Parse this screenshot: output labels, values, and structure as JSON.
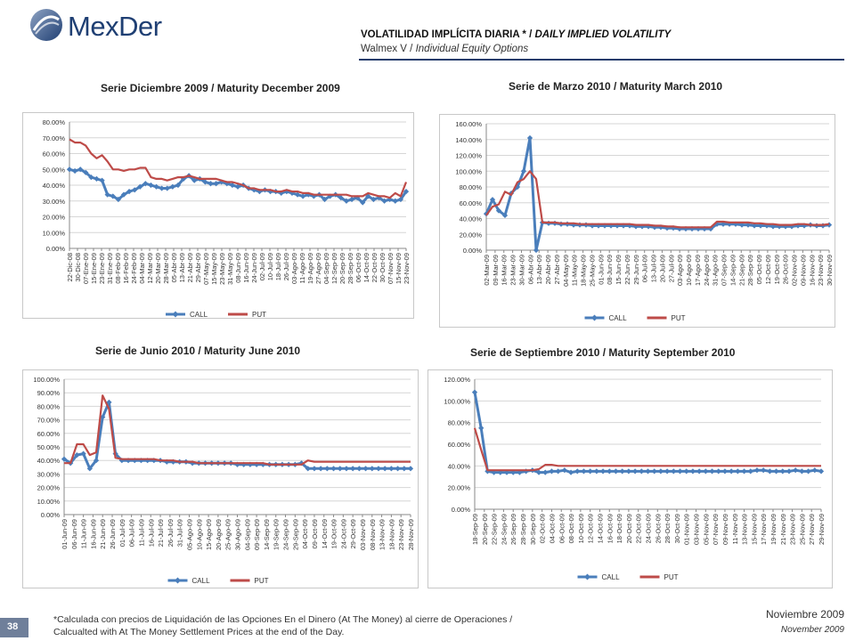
{
  "header": {
    "logo_text": "MexDer",
    "title_es": "VOLATILIDAD IMPLÍCITA DIARIA *",
    "title_sep": " / ",
    "title_en": "DAILY IMPLIED VOLATILITY",
    "subtitle_es": "Walmex V",
    "subtitle_sep": " / ",
    "subtitle_en": "Individual Equity Options"
  },
  "footer": {
    "note_line1": "*Calculada con precios de Liquidación de las Opciones En el Dinero (At The Money) al cierre de Operaciones /",
    "note_line2": "Calcualted with At The Money Settlement Prices at the end of the Day.",
    "date_es": "Noviembre 2009",
    "date_en": "November  2009",
    "page_number": "38"
  },
  "colors": {
    "call": "#4a7ebb",
    "put": "#be4b48",
    "brand": "#1f3f73"
  },
  "chart_data": [
    {
      "type": "line",
      "title": "Serie Diciembre 2009 / Maturity December 2009",
      "ylim": [
        0,
        80
      ],
      "ystep": 10,
      "y_format": "percent",
      "x_ticks": [
        "22-Dic-08",
        "30-Dic-08",
        "07-Ene-09",
        "15-Ene-09",
        "23-Ene-09",
        "31-Ene-09",
        "08-Feb-09",
        "16-Feb-09",
        "24-Feb-09",
        "04-Mar-09",
        "12-Mar-09",
        "20-Mar-09",
        "28-Mar-09",
        "05-Abr-09",
        "13-Abr-09",
        "21-Abr-09",
        "29-Abr-09",
        "07-May-09",
        "15-May-09",
        "23-May-09",
        "31-May-09",
        "08-Jun-09",
        "16-Jun-09",
        "24-Jun-09",
        "02-Jul-09",
        "10-Jul-09",
        "18-Jul-09",
        "26-Jul-09",
        "03-Ago-09",
        "11-Ago-09",
        "19-Ago-09",
        "27-Ago-09",
        "04-Sep-09",
        "12-Sep-09",
        "20-Sep-09",
        "28-Sep-09",
        "06-Oct-09",
        "14-Oct-09",
        "22-Oct-09",
        "30-Oct-09",
        "07-Nov-09",
        "15-Nov-09",
        "23-Nov-09"
      ],
      "legend": [
        "CALL",
        "PUT"
      ],
      "series": [
        {
          "name": "CALL",
          "values": [
            50,
            49,
            50,
            48,
            45,
            44,
            43,
            34,
            33,
            31,
            34,
            36,
            37,
            39,
            41,
            40,
            39,
            38,
            38,
            39,
            40,
            44,
            46,
            43,
            44,
            42,
            41,
            41,
            42,
            41,
            40,
            39,
            40,
            38,
            37,
            36,
            37,
            36,
            36,
            35,
            36,
            35,
            34,
            33,
            34,
            33,
            34,
            31,
            33,
            34,
            32,
            30,
            31,
            32,
            29,
            33,
            31,
            32,
            30,
            31,
            30,
            31,
            36
          ]
        },
        {
          "name": "PUT",
          "values": [
            69,
            67,
            67,
            65,
            60,
            57,
            59,
            55,
            50,
            50,
            49,
            50,
            50,
            51,
            51,
            45,
            44,
            44,
            43,
            44,
            45,
            45,
            46,
            45,
            44,
            44,
            44,
            44,
            43,
            42,
            42,
            41,
            40,
            38,
            38,
            37,
            37,
            37,
            36,
            36,
            37,
            36,
            36,
            35,
            35,
            34,
            34,
            34,
            34,
            34,
            34,
            34,
            33,
            33,
            33,
            35,
            34,
            33,
            33,
            32,
            35,
            33,
            42
          ]
        }
      ]
    },
    {
      "type": "line",
      "title": "Serie de Marzo 2010 / Maturity March 2010",
      "ylim": [
        0,
        160
      ],
      "ystep": 20,
      "y_format": "percent",
      "x_ticks": [
        "02-Mar-09",
        "09-Mar-09",
        "16-Mar-09",
        "23-Mar-09",
        "30-Mar-09",
        "06-Abr-09",
        "13-Abr-09",
        "20-Abr-09",
        "27-Abr-09",
        "04-May-09",
        "11-May-09",
        "18-May-09",
        "25-May-09",
        "01-Jun-09",
        "08-Jun-09",
        "15-Jun-09",
        "22-Jun-09",
        "29-Jun-09",
        "06-Jul-09",
        "13-Jul-09",
        "20-Jul-09",
        "27-Jul-09",
        "03-Ago-09",
        "10-Ago-09",
        "17-Ago-09",
        "24-Ago-09",
        "31-Ago-09",
        "07-Sep-09",
        "14-Sep-09",
        "21-Sep-09",
        "28-Sep-09",
        "05-Oct-09",
        "12-Oct-09",
        "19-Oct-09",
        "26-Oct-09",
        "02-Nov-09",
        "09-Nov-09",
        "16-Nov-09",
        "23-Nov-09",
        "30-Nov-09"
      ],
      "legend": [
        "CALL",
        "PUT"
      ],
      "series": [
        {
          "name": "CALL",
          "values": [
            46,
            64,
            50,
            44,
            72,
            80,
            100,
            142,
            0,
            35,
            34,
            34,
            33,
            33,
            32,
            32,
            32,
            31,
            31,
            31,
            31,
            31,
            31,
            31,
            30,
            30,
            30,
            29,
            29,
            28,
            28,
            27,
            27,
            27,
            27,
            27,
            27,
            33,
            33,
            33,
            33,
            32,
            32,
            31,
            31,
            31,
            30,
            30,
            30,
            30,
            31,
            31,
            32,
            31,
            31,
            32
          ]
        },
        {
          "name": "PUT",
          "values": [
            44,
            55,
            58,
            74,
            70,
            86,
            90,
            100,
            90,
            35,
            35,
            35,
            34,
            34,
            34,
            33,
            33,
            33,
            33,
            33,
            33,
            33,
            33,
            33,
            32,
            32,
            32,
            31,
            31,
            30,
            30,
            29,
            29,
            29,
            29,
            29,
            29,
            36,
            36,
            35,
            35,
            35,
            35,
            34,
            34,
            33,
            33,
            32,
            32,
            32,
            33,
            33,
            32,
            32,
            32,
            33
          ]
        }
      ]
    },
    {
      "type": "line",
      "title": "Serie de Junio 2010 / Maturity June 2010",
      "ylim": [
        0,
        100
      ],
      "ystep": 10,
      "y_format": "percent",
      "x_ticks": [
        "01-Jun-09",
        "06-Jun-09",
        "11-Jun-09",
        "16-Jun-09",
        "21-Jun-09",
        "26-Jun-09",
        "01-Jul-09",
        "06-Jul-09",
        "11-Jul-09",
        "16-Jul-09",
        "21-Jul-09",
        "26-Jul-09",
        "31-Jul-09",
        "05-Ago-09",
        "10-Ago-09",
        "15-Ago-09",
        "20-Ago-09",
        "25-Ago-09",
        "30-Ago-09",
        "04-Sep-09",
        "09-Sep-09",
        "14-Sep-09",
        "19-Sep-09",
        "24-Sep-09",
        "29-Sep-09",
        "04-Oct-09",
        "09-Oct-09",
        "14-Oct-09",
        "19-Oct-09",
        "24-Oct-09",
        "29-Oct-09",
        "03-Nov-09",
        "08-Nov-09",
        "13-Nov-09",
        "18-Nov-09",
        "23-Nov-09",
        "28-Nov-09"
      ],
      "legend": [
        "CALL",
        "PUT"
      ],
      "series": [
        {
          "name": "CALL",
          "values": [
            41,
            38,
            44,
            45,
            34,
            40,
            72,
            83,
            45,
            40,
            40,
            40,
            40,
            40,
            40,
            40,
            39,
            39,
            39,
            39,
            38,
            38,
            38,
            38,
            38,
            38,
            38,
            37,
            37,
            37,
            37,
            37,
            37,
            37,
            37,
            37,
            37,
            38,
            34,
            34,
            34,
            34,
            34,
            34,
            34,
            34,
            34,
            34,
            34,
            34,
            34,
            34,
            34,
            34,
            34
          ]
        },
        {
          "name": "PUT",
          "values": [
            38,
            38,
            52,
            52,
            44,
            46,
            88,
            78,
            42,
            41,
            41,
            41,
            41,
            41,
            41,
            40,
            40,
            40,
            39,
            39,
            39,
            38,
            38,
            38,
            38,
            38,
            38,
            38,
            38,
            38,
            38,
            38,
            37,
            37,
            37,
            37,
            37,
            37,
            40,
            39,
            39,
            39,
            39,
            39,
            39,
            39,
            39,
            39,
            39,
            39,
            39,
            39,
            39,
            39,
            39
          ]
        }
      ]
    },
    {
      "type": "line",
      "title": "Serie de Septiembre 2010 / Maturity September 2010",
      "ylim": [
        0,
        120
      ],
      "ystep": 20,
      "y_format": "percent",
      "x_ticks": [
        "18-Sep-09",
        "20-Sep-09",
        "22-Sep-09",
        "24-Sep-09",
        "26-Sep-09",
        "28-Sep-09",
        "30-Sep-09",
        "02-Oct-09",
        "04-Oct-09",
        "06-Oct-09",
        "08-Oct-09",
        "10-Oct-09",
        "12-Oct-09",
        "14-Oct-09",
        "16-Oct-09",
        "18-Oct-09",
        "20-Oct-09",
        "22-Oct-09",
        "24-Oct-09",
        "26-Oct-09",
        "28-Oct-09",
        "30-Oct-09",
        "01-Nov-09",
        "03-Nov-09",
        "05-Nov-09",
        "07-Nov-09",
        "09-Nov-09",
        "11-Nov-09",
        "13-Nov-09",
        "15-Nov-09",
        "17-Nov-09",
        "19-Nov-09",
        "21-Nov-09",
        "23-Nov-09",
        "25-Nov-09",
        "27-Nov-09",
        "29-Nov-09"
      ],
      "legend": [
        "CALL",
        "PUT"
      ],
      "series": [
        {
          "name": "CALL",
          "values": [
            108,
            75,
            35,
            34,
            34,
            34,
            34,
            34,
            35,
            36,
            34,
            34,
            35,
            35,
            36,
            34,
            35,
            35,
            35,
            35,
            35,
            35,
            35,
            35,
            35,
            35,
            35,
            35,
            35,
            35,
            35,
            35,
            35,
            35,
            35,
            35,
            35,
            35,
            35,
            35,
            35,
            35,
            35,
            35,
            36,
            36,
            35,
            35,
            35,
            35,
            36,
            35,
            35,
            36,
            35
          ]
        },
        {
          "name": "PUT",
          "values": [
            75,
            55,
            36,
            36,
            36,
            36,
            36,
            36,
            36,
            36,
            37,
            41,
            41,
            40,
            40,
            40,
            40,
            40,
            40,
            40,
            40,
            40,
            40,
            40,
            40,
            40,
            40,
            40,
            40,
            40,
            40,
            40,
            40,
            40,
            40,
            40,
            40,
            40,
            40,
            40,
            40,
            40,
            40,
            40,
            40,
            40,
            40,
            40,
            40,
            40,
            40,
            40,
            40,
            40,
            40
          ]
        }
      ]
    }
  ]
}
